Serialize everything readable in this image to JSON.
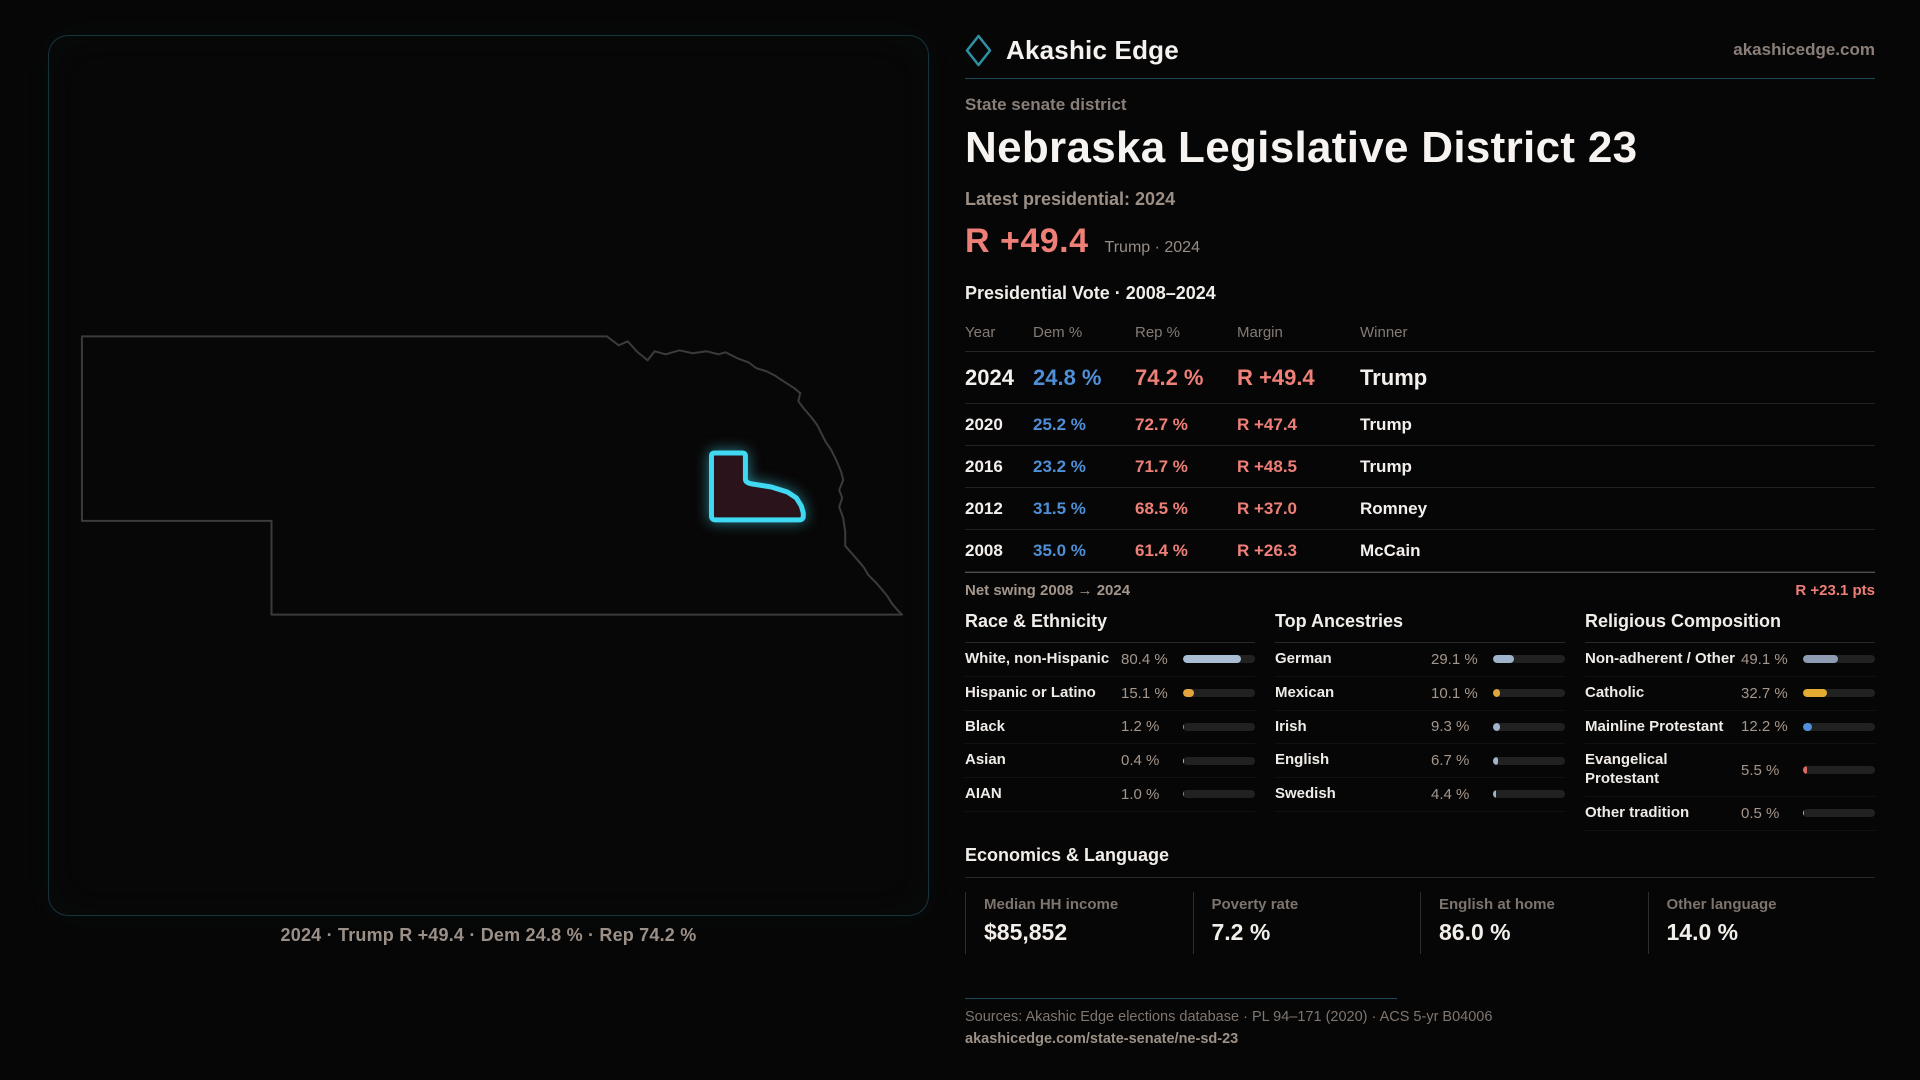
{
  "brand": {
    "name": "Akashic Edge",
    "domain": "akashicedge.com"
  },
  "map": {
    "caption": "2024 · Trump R +49.4 · Dem 24.8 % · Rep 74.2 %"
  },
  "header": {
    "kicker": "State senate district",
    "title": "Nebraska Legislative District 23",
    "latest": "Latest presidential: 2024",
    "margin_value": "R +49.4",
    "margin_note": "Trump · 2024"
  },
  "vote_table": {
    "title": "Presidential Vote · 2008–2024",
    "columns": [
      "Year",
      "Dem %",
      "Rep %",
      "Margin",
      "Winner"
    ],
    "rows": [
      {
        "year": "2024",
        "dem": "24.8 %",
        "rep": "74.2 %",
        "margin": "R +49.4",
        "winner": "Trump"
      },
      {
        "year": "2020",
        "dem": "25.2 %",
        "rep": "72.7 %",
        "margin": "R +47.4",
        "winner": "Trump"
      },
      {
        "year": "2016",
        "dem": "23.2 %",
        "rep": "71.7 %",
        "margin": "R +48.5",
        "winner": "Trump"
      },
      {
        "year": "2012",
        "dem": "31.5 %",
        "rep": "68.5 %",
        "margin": "R +37.0",
        "winner": "Romney"
      },
      {
        "year": "2008",
        "dem": "35.0 %",
        "rep": "61.4 %",
        "margin": "R +26.3",
        "winner": "McCain"
      }
    ],
    "net_swing_label": "Net swing 2008 → 2024",
    "net_swing_value": "R +23.1 pts"
  },
  "demographics": {
    "race": {
      "title": "Race & Ethnicity",
      "rows": [
        {
          "label": "White, non-Hispanic",
          "value": "80.4 %",
          "pct": 80.4,
          "color": "#a9bdd3"
        },
        {
          "label": "Hispanic or Latino",
          "value": "15.1 %",
          "pct": 15.1,
          "color": "#e2a43c"
        },
        {
          "label": "Black",
          "value": "1.2 %",
          "pct": 1.2,
          "color": "#8f86d8"
        },
        {
          "label": "Asian",
          "value": "0.4 %",
          "pct": 0.4,
          "color": "#a9bdd3"
        },
        {
          "label": "AIAN",
          "value": "1.0 %",
          "pct": 1.0,
          "color": "#c8732f"
        }
      ]
    },
    "ancestries": {
      "title": "Top Ancestries",
      "rows": [
        {
          "label": "German",
          "value": "29.1 %",
          "pct": 29.1,
          "color": "#9fb3cb"
        },
        {
          "label": "Mexican",
          "value": "10.1 %",
          "pct": 10.1,
          "color": "#e2a43c"
        },
        {
          "label": "Irish",
          "value": "9.3 %",
          "pct": 9.3,
          "color": "#9fb3cb"
        },
        {
          "label": "English",
          "value": "6.7 %",
          "pct": 6.7,
          "color": "#9fb3cb"
        },
        {
          "label": "Swedish",
          "value": "4.4 %",
          "pct": 4.4,
          "color": "#9fb3cb"
        }
      ]
    },
    "religion": {
      "title": "Religious Composition",
      "rows": [
        {
          "label": "Non-adherent / Other",
          "value": "49.1 %",
          "pct": 49.1,
          "color": "#8e9cb3"
        },
        {
          "label": "Catholic",
          "value": "32.7 %",
          "pct": 32.7,
          "color": "#e3ab2f"
        },
        {
          "label": "Mainline Protestant",
          "value": "12.2 %",
          "pct": 12.2,
          "color": "#4f8fdb"
        },
        {
          "label": "Evangelical Protestant",
          "value": "5.5 %",
          "pct": 5.5,
          "color": "#d96a66"
        },
        {
          "label": "Other tradition",
          "value": "0.5 %",
          "pct": 0.5,
          "color": "#9fb3cb"
        }
      ]
    }
  },
  "economics": {
    "title": "Economics & Language",
    "stats": [
      {
        "label": "Median HH income",
        "value": "$85,852"
      },
      {
        "label": "Poverty rate",
        "value": "7.2 %"
      },
      {
        "label": "English at home",
        "value": "86.0 %"
      },
      {
        "label": "Other language",
        "value": "14.0 %"
      }
    ]
  },
  "footer": {
    "sources": "Sources: Akashic Edge elections database · PL 94–171 (2020) · ACS 5-yr B04006",
    "url": "akashicedge.com/state-senate/ne-sd-23"
  },
  "colors": {
    "accent_cyan": "#3fd9f2",
    "teal_rule": "#1c4a56",
    "dem_blue": "#4e8fd8",
    "rep_red": "#ee8078",
    "margin_salmon": "#ee7f76"
  },
  "chart_data": [
    {
      "type": "table",
      "title": "Presidential Vote · 2008–2024",
      "columns": [
        "Year",
        "Dem %",
        "Rep %",
        "Margin",
        "Winner"
      ],
      "rows": [
        [
          "2024",
          24.8,
          74.2,
          "R +49.4",
          "Trump"
        ],
        [
          "2020",
          25.2,
          72.7,
          "R +47.4",
          "Trump"
        ],
        [
          "2016",
          23.2,
          71.7,
          "R +48.5",
          "Trump"
        ],
        [
          "2012",
          31.5,
          68.5,
          "R +37.0",
          "Romney"
        ],
        [
          "2008",
          35.0,
          61.4,
          "R +26.3",
          "McCain"
        ]
      ],
      "net_swing": "R +23.1 pts"
    },
    {
      "type": "bar",
      "title": "Race & Ethnicity",
      "categories": [
        "White, non-Hispanic",
        "Hispanic or Latino",
        "Black",
        "Asian",
        "AIAN"
      ],
      "values": [
        80.4,
        15.1,
        1.2,
        0.4,
        1.0
      ],
      "xlabel": "",
      "ylabel": "%",
      "ylim": [
        0,
        100
      ]
    },
    {
      "type": "bar",
      "title": "Top Ancestries",
      "categories": [
        "German",
        "Mexican",
        "Irish",
        "English",
        "Swedish"
      ],
      "values": [
        29.1,
        10.1,
        9.3,
        6.7,
        4.4
      ],
      "xlabel": "",
      "ylabel": "%",
      "ylim": [
        0,
        100
      ]
    },
    {
      "type": "bar",
      "title": "Religious Composition",
      "categories": [
        "Non-adherent / Other",
        "Catholic",
        "Mainline Protestant",
        "Evangelical Protestant",
        "Other tradition"
      ],
      "values": [
        49.1,
        32.7,
        12.2,
        5.5,
        0.5
      ],
      "xlabel": "",
      "ylabel": "%",
      "ylim": [
        0,
        100
      ]
    },
    {
      "type": "bar",
      "title": "Economics & Language",
      "categories": [
        "Median HH income",
        "Poverty rate",
        "English at home",
        "Other language"
      ],
      "values": [
        85852,
        7.2,
        86.0,
        14.0
      ]
    }
  ]
}
